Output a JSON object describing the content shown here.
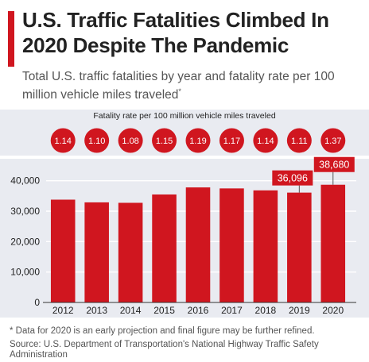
{
  "header": {
    "title": "U.S. Traffic Fatalities Climbed In 2020 Despite The Pandemic",
    "subtitle": "Total U.S. traffic fatalities by year and fatality rate per 100 million vehicle miles traveled",
    "subtitle_mark": "*"
  },
  "rate_section": {
    "title": "Fatality rate per 100 million vehicle miles traveled"
  },
  "footer": {
    "footnote": "* Data for 2020 is an early projection and final figure may be further refined.",
    "source": "Source: U.S. Department of Transportation's National Highway Traffic Safety Administration"
  },
  "colors": {
    "bar": "#d0161f",
    "accent": "#d0161f",
    "panel": "#e9ebf1",
    "grid": "#ffffff",
    "text": "#222222"
  },
  "chart_data": {
    "type": "bar",
    "categories": [
      "2012",
      "2013",
      "2014",
      "2015",
      "2016",
      "2017",
      "2018",
      "2019",
      "2020"
    ],
    "values": [
      33782,
      32893,
      32744,
      35484,
      37806,
      37473,
      36835,
      36096,
      38680
    ],
    "data_labels": [
      {
        "category": "2019",
        "text": "36,096"
      },
      {
        "category": "2020",
        "text": "38,680"
      }
    ],
    "fatality_rates": [
      "1.14",
      "1.10",
      "1.08",
      "1.15",
      "1.19",
      "1.17",
      "1.14",
      "1.11",
      "1.37"
    ],
    "yticks": [
      0,
      10000,
      20000,
      30000,
      40000
    ],
    "ytick_labels": [
      "0",
      "10,000",
      "20,000",
      "30,000",
      "40,000"
    ],
    "ylim": [
      0,
      42000
    ],
    "grid": true,
    "xlabel": "",
    "ylabel": ""
  }
}
